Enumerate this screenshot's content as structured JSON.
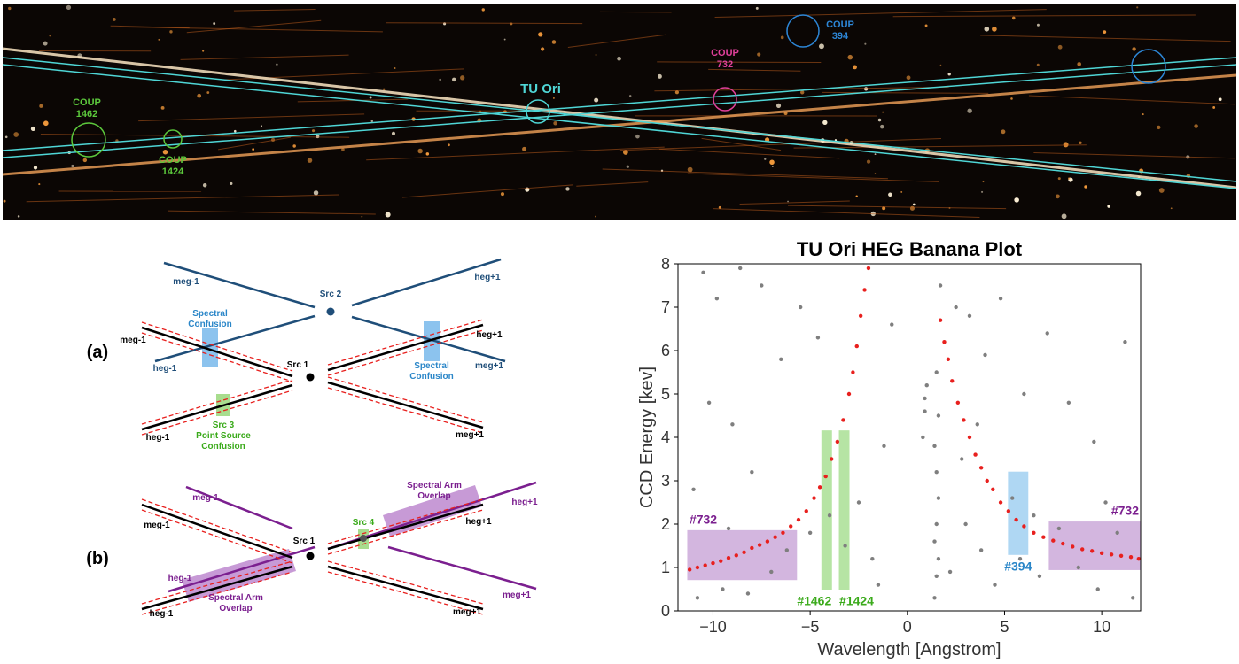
{
  "image": {
    "tu_ori": "TU Ori",
    "coup_1462": [
      "COUP",
      "1462"
    ],
    "coup_1424": [
      "COUP",
      "1424"
    ],
    "coup_732": [
      "COUP",
      "732"
    ],
    "coup_394": [
      "COUP",
      "394"
    ]
  },
  "diagram_a": {
    "panel": "(a)",
    "arm_labels": [
      "meg-1",
      "heg+1",
      "heg-1",
      "meg+1",
      "meg-1",
      "heg+1",
      "heg-1",
      "meg+1"
    ],
    "src_1": "Src 1",
    "src_2": "Src 2",
    "confusion_left": [
      "Spectral",
      "Confusion"
    ],
    "confusion_right": [
      "Spectral",
      "Confusion"
    ],
    "src_3": [
      "Src 3",
      "Point Source",
      "Confusion"
    ]
  },
  "diagram_b": {
    "panel": "(b)",
    "arm_labels": [
      "meg-1",
      "heg+1",
      "heg-1",
      "meg+1",
      "meg-1",
      "heg+1",
      "heg-1",
      "meg+1"
    ],
    "src_1": "Src 1",
    "src_4": "Src 4",
    "overlap_upper": [
      "Spectral Arm",
      "Overlap"
    ],
    "overlap_lower": [
      "Spectral Arm",
      "Overlap"
    ]
  },
  "chart_data": {
    "type": "scatter",
    "title": "TU Ori HEG Banana Plot",
    "x_label": "Wavelength [Angstrom]",
    "y_label": "CCD Energy [kev]",
    "xlim": [
      -11.8,
      12
    ],
    "ylim": [
      0,
      8
    ],
    "xticks": [
      {
        "value": -10,
        "label": "−10"
      },
      {
        "value": -5,
        "label": "−5"
      },
      0,
      5,
      10
    ],
    "yticks": [
      0,
      1,
      2,
      3,
      4,
      5,
      6,
      7,
      8
    ],
    "series": [
      {
        "color": "#7f7f7f",
        "x": [
          1.4,
          1.5,
          1.6,
          1.4,
          1.5,
          1.6,
          1.5,
          1.4,
          1.6,
          1.5,
          1.7,
          0.8,
          0.9,
          1.0,
          0.9,
          -10.5,
          -9.8,
          -8.6,
          -7.5,
          -10.2,
          -9.0,
          -8.0,
          -6.5,
          -5.5,
          -4.6,
          -3.2,
          -2.5,
          -1.8,
          -1.2,
          -0.8,
          -10.8,
          -9.5,
          -8.2,
          -7.0,
          -6.2,
          -5.0,
          -4.0,
          -1.5,
          -11.0,
          -9.2,
          2.5,
          3.2,
          4.0,
          4.8,
          6.0,
          7.2,
          8.3,
          9.6,
          11.2,
          3.0,
          3.8,
          4.5,
          5.8,
          6.8,
          7.8,
          8.8,
          9.8,
          10.8,
          11.6,
          2.2,
          2.8,
          3.6,
          5.4,
          6.5,
          10.2
        ],
        "values": [
          0.3,
          0.8,
          1.2,
          1.6,
          2.0,
          2.6,
          3.2,
          3.8,
          4.5,
          5.5,
          7.5,
          4.0,
          4.6,
          5.2,
          4.9,
          7.8,
          7.2,
          7.9,
          7.5,
          4.8,
          4.3,
          3.2,
          5.8,
          7.0,
          6.3,
          1.5,
          2.5,
          1.2,
          3.8,
          6.6,
          0.3,
          0.5,
          0.4,
          0.9,
          1.4,
          1.8,
          2.2,
          0.6,
          2.8,
          1.9,
          7.0,
          6.8,
          5.9,
          7.2,
          5.0,
          6.4,
          4.8,
          3.9,
          6.2,
          2.0,
          1.4,
          0.6,
          1.2,
          0.8,
          1.9,
          1.0,
          0.5,
          1.8,
          0.3,
          0.9,
          3.5,
          4.3,
          2.6,
          2.2,
          2.5
        ]
      },
      {
        "color": "#e8201e",
        "x": [
          -11.2,
          -10.8,
          -10.4,
          -10.0,
          -9.6,
          -9.2,
          -8.8,
          -8.4,
          -8.0,
          -7.6,
          -7.2,
          -6.8,
          -6.4,
          -6.0,
          -5.6,
          -5.2,
          -4.8,
          -4.5,
          -4.2,
          -3.9,
          -3.6,
          -3.3,
          -3.0,
          -2.8,
          -2.6,
          -2.4,
          -2.2,
          -2.0,
          1.7,
          1.9,
          2.1,
          2.3,
          2.6,
          2.9,
          3.2,
          3.5,
          3.8,
          4.1,
          4.4,
          4.8,
          5.2,
          5.6,
          6.0,
          6.5,
          7.0,
          7.5,
          8.0,
          8.5,
          9.0,
          9.5,
          10.0,
          10.5,
          11.0,
          11.5,
          11.9
        ],
        "values": [
          0.95,
          1.0,
          1.05,
          1.1,
          1.15,
          1.22,
          1.28,
          1.35,
          1.45,
          1.52,
          1.6,
          1.7,
          1.8,
          1.95,
          2.1,
          2.3,
          2.6,
          2.85,
          3.1,
          3.5,
          3.9,
          4.4,
          5.0,
          5.5,
          6.1,
          6.8,
          7.4,
          7.9,
          6.7,
          6.2,
          5.8,
          5.3,
          4.8,
          4.4,
          4.0,
          3.6,
          3.3,
          3.0,
          2.8,
          2.5,
          2.3,
          2.1,
          1.95,
          1.8,
          1.7,
          1.62,
          1.55,
          1.48,
          1.42,
          1.38,
          1.33,
          1.3,
          1.27,
          1.24,
          1.2
        ]
      }
    ],
    "regions": [
      {
        "label": "#732",
        "x": [
          -11.3,
          -5.7
        ],
        "y": [
          0.72,
          1.85
        ],
        "color": "#b07cc6",
        "label_color": "#7b1f8f",
        "label_at": "top-left"
      },
      {
        "label": "#1462",
        "x": [
          -4.4,
          -3.9
        ],
        "y": [
          0.5,
          4.15
        ],
        "color": "#7ccf5a",
        "label_color": "#3aaa1a",
        "label_at": "bottom-left"
      },
      {
        "label": "#1424",
        "x": [
          -3.5,
          -3.0
        ],
        "y": [
          0.5,
          4.15
        ],
        "color": "#7ccf5a",
        "label_color": "#3aaa1a",
        "label_at": "bottom-right"
      },
      {
        "label": "#394",
        "x": [
          5.2,
          6.2
        ],
        "y": [
          1.3,
          3.2
        ],
        "color": "#6fb8ea",
        "label_color": "#2a86c8",
        "label_at": "bottom-center"
      },
      {
        "label": "#732",
        "x": [
          7.3,
          12
        ],
        "y": [
          0.95,
          2.05
        ],
        "color": "#b07cc6",
        "label_color": "#7b1f8f",
        "label_at": "top-right"
      }
    ]
  }
}
